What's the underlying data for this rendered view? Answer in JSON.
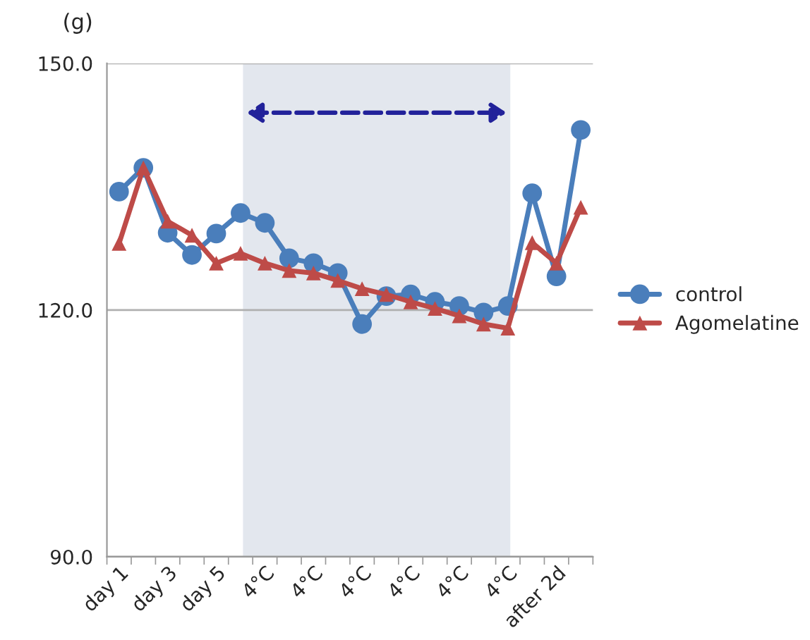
{
  "chart_data": {
    "type": "line",
    "ylabel": "(g)",
    "categories": [
      "day 1",
      null,
      "day 3",
      null,
      "day 5",
      null,
      "4°C",
      null,
      "4°C",
      null,
      "4°C",
      null,
      "4°C",
      null,
      "4°C",
      null,
      "4°C",
      null,
      "after 2d",
      null
    ],
    "series": [
      {
        "name": "control",
        "color": "#4a7ebb",
        "marker": "circle",
        "values": [
          134.4,
          137.3,
          129.4,
          126.7,
          129.3,
          131.8,
          130.6,
          126.3,
          125.7,
          124.5,
          118.3,
          121.7,
          121.9,
          121.0,
          120.5,
          119.7,
          120.5,
          134.2,
          124.1,
          141.9
        ]
      },
      {
        "name": "Agomelatine",
        "color": "#be4b48",
        "marker": "triangle",
        "values": [
          128.1,
          137.3,
          130.8,
          129.1,
          125.7,
          126.9,
          125.7,
          124.8,
          124.5,
          123.6,
          122.6,
          121.9,
          121.0,
          120.2,
          119.3,
          118.3,
          117.8,
          128.2,
          125.7,
          132.5
        ]
      }
    ],
    "ylim": [
      90,
      150
    ],
    "yticks": [
      {
        "value": 90,
        "label": "90.0"
      },
      {
        "value": 120,
        "label": "120.0"
      },
      {
        "value": 150,
        "label": "150.0"
      }
    ],
    "grid": "y",
    "legend": "right",
    "line_style": "solid"
  }
}
